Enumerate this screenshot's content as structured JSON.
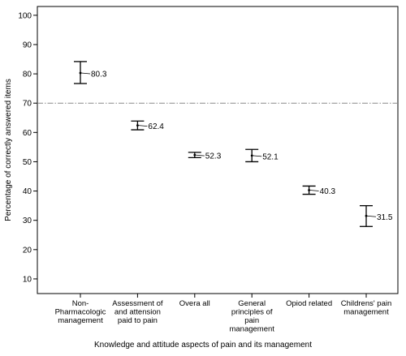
{
  "chart_data": {
    "type": "scatter",
    "subtype": "error-bar",
    "title": "",
    "xlabel": "Knowledge and attitude aspects of  pain and its management",
    "ylabel": "Percentage of correctly answered items",
    "ylim": [
      5,
      103
    ],
    "yticks": [
      10,
      20,
      30,
      40,
      50,
      60,
      70,
      80,
      90,
      100
    ],
    "grid": false,
    "legend": "none",
    "reference_line": {
      "y": 70,
      "style": "dash-dot",
      "color": "#8a8a8a"
    },
    "categories": [
      [
        "Non-",
        "Pharmacologic",
        "management"
      ],
      [
        "Assessment of",
        "and attension",
        "paid to pain"
      ],
      [
        "Overa all"
      ],
      [
        "General",
        "principles of",
        "pain",
        "management"
      ],
      [
        "Opiod related"
      ],
      [
        "Childrens' pain",
        "management"
      ]
    ],
    "points": [
      {
        "mean": 80.3,
        "lower": 76.7,
        "upper": 84.2,
        "label": "80.3"
      },
      {
        "mean": 62.4,
        "lower": 60.9,
        "upper": 63.9,
        "label": "62.4"
      },
      {
        "mean": 52.3,
        "lower": 51.4,
        "upper": 53.2,
        "label": "52.3"
      },
      {
        "mean": 52.1,
        "lower": 50.0,
        "upper": 54.2,
        "label": "52.1"
      },
      {
        "mean": 40.3,
        "lower": 38.9,
        "upper": 41.7,
        "label": "40.3"
      },
      {
        "mean": 31.5,
        "lower": 27.9,
        "upper": 35.0,
        "label": "31.5"
      }
    ],
    "colors": {
      "marker": "#000000",
      "axis": "#000000",
      "frame": "#000000"
    }
  }
}
